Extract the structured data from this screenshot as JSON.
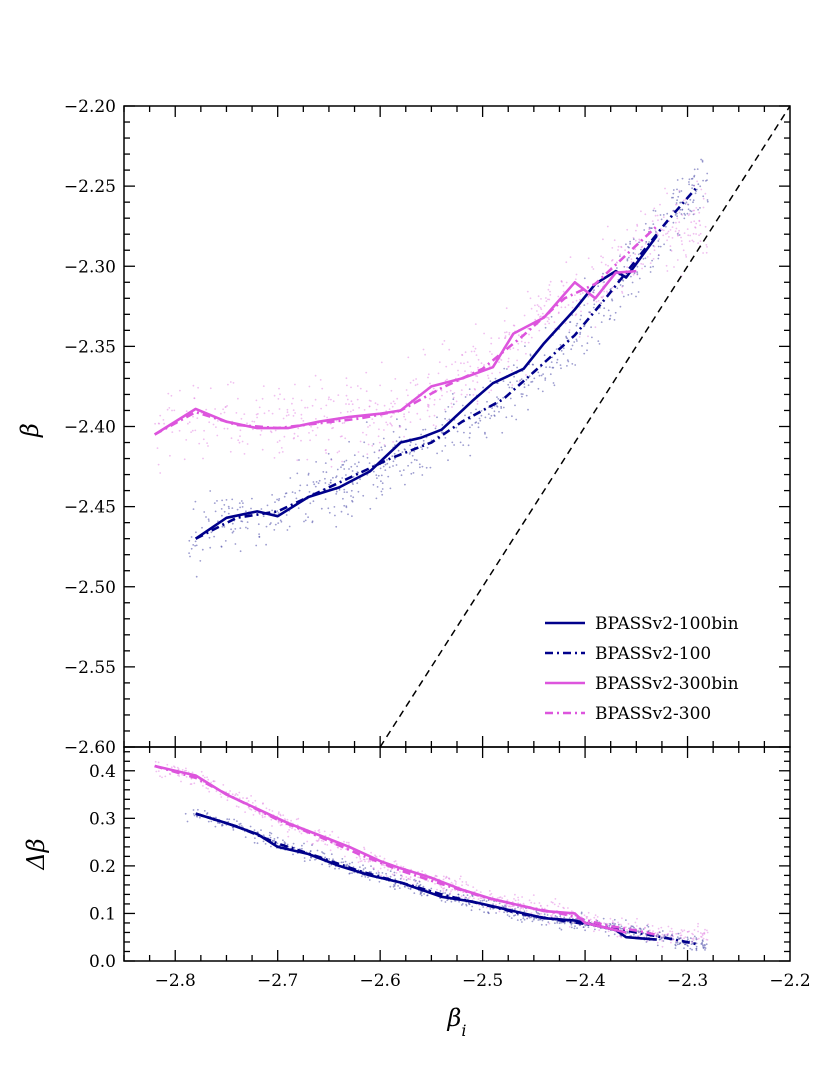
{
  "chart_data": [
    {
      "type": "line",
      "panel": "main",
      "xlabel": "",
      "ylabel": "β",
      "xlim": [
        -2.85,
        -2.2
      ],
      "ylim": [
        -2.6,
        -2.2
      ],
      "yticks": [
        -2.6,
        -2.55,
        -2.5,
        -2.45,
        -2.4,
        -2.35,
        -2.3,
        -2.25,
        -2.2
      ],
      "ytick_labels": [
        "−2.60",
        "−2.55",
        "−2.50",
        "−2.45",
        "−2.40",
        "−2.35",
        "−2.30",
        "−2.25",
        "−2.20"
      ],
      "reference_line": {
        "name": "one-to-one",
        "x": [
          -2.6,
          -2.2
        ],
        "y": [
          -2.6,
          -2.2
        ],
        "style": "dashed",
        "color": "#000000"
      },
      "series": [
        {
          "name": "BPASSv2-100bin",
          "color": "#00008b",
          "style": "solid",
          "x": [
            -2.78,
            -2.75,
            -2.72,
            -2.7,
            -2.67,
            -2.64,
            -2.61,
            -2.58,
            -2.56,
            -2.54,
            -2.51,
            -2.49,
            -2.46,
            -2.44,
            -2.41,
            -2.39,
            -2.37,
            -2.36,
            -2.33
          ],
          "y": [
            -2.47,
            -2.457,
            -2.453,
            -2.456,
            -2.444,
            -2.438,
            -2.428,
            -2.41,
            -2.407,
            -2.402,
            -2.384,
            -2.373,
            -2.364,
            -2.348,
            -2.327,
            -2.311,
            -2.303,
            -2.307,
            -2.281
          ]
        },
        {
          "name": "BPASSv2-100",
          "color": "#00008b",
          "style": "dashdot",
          "x": [
            -2.78,
            -2.74,
            -2.7,
            -2.66,
            -2.62,
            -2.59,
            -2.55,
            -2.52,
            -2.48,
            -2.45,
            -2.41,
            -2.38,
            -2.35,
            -2.32,
            -2.29
          ],
          "y": [
            -2.47,
            -2.457,
            -2.453,
            -2.441,
            -2.429,
            -2.42,
            -2.41,
            -2.397,
            -2.383,
            -2.366,
            -2.343,
            -2.32,
            -2.296,
            -2.272,
            -2.25
          ]
        },
        {
          "name": "BPASSv2-300bin",
          "color": "#dd55dd",
          "style": "solid",
          "x": [
            -2.82,
            -2.78,
            -2.75,
            -2.72,
            -2.69,
            -2.66,
            -2.63,
            -2.6,
            -2.58,
            -2.55,
            -2.52,
            -2.49,
            -2.47,
            -2.44,
            -2.41,
            -2.39,
            -2.37,
            -2.35
          ],
          "y": [
            -2.405,
            -2.389,
            -2.397,
            -2.401,
            -2.401,
            -2.397,
            -2.394,
            -2.392,
            -2.39,
            -2.375,
            -2.37,
            -2.363,
            -2.342,
            -2.332,
            -2.31,
            -2.32,
            -2.304,
            -2.303
          ]
        },
        {
          "name": "BPASSv2-300",
          "color": "#dd55dd",
          "style": "dashdot",
          "x": [
            -2.82,
            -2.78,
            -2.74,
            -2.7,
            -2.66,
            -2.62,
            -2.58,
            -2.54,
            -2.5,
            -2.46,
            -2.42,
            -2.39,
            -2.36,
            -2.33
          ],
          "y": [
            -2.405,
            -2.391,
            -2.399,
            -2.401,
            -2.398,
            -2.395,
            -2.39,
            -2.376,
            -2.364,
            -2.343,
            -2.32,
            -2.311,
            -2.293,
            -2.275
          ]
        }
      ],
      "scatter_clouds": [
        {
          "name": "BPASSv2-100 points",
          "color": "#4a4aa8",
          "x_range": [
            -2.79,
            -2.28
          ],
          "y_center_series": "BPASSv2-100",
          "y_spread": 0.025
        },
        {
          "name": "BPASSv2-300 points",
          "color": "#e48ae4",
          "x_range": [
            -2.82,
            -2.28
          ],
          "y_center_series": "BPASSv2-300",
          "y_spread": 0.03
        }
      ],
      "legend": {
        "location": "lower-right",
        "entries": [
          "BPASSv2-100bin",
          "BPASSv2-100",
          "BPASSv2-300bin",
          "BPASSv2-300"
        ]
      }
    },
    {
      "type": "line",
      "panel": "residual",
      "xlabel": "β_i",
      "ylabel": "Δβ",
      "xlim": [
        -2.85,
        -2.2
      ],
      "ylim": [
        0.0,
        0.45
      ],
      "xticks": [
        -2.8,
        -2.7,
        -2.6,
        -2.5,
        -2.4,
        -2.3,
        -2.2
      ],
      "xtick_labels": [
        "−2.8",
        "−2.7",
        "−2.6",
        "−2.5",
        "−2.4",
        "−2.3",
        "−2.2"
      ],
      "yticks": [
        0.0,
        0.1,
        0.2,
        0.3,
        0.4
      ],
      "ytick_labels": [
        "0.0",
        "0.1",
        "0.2",
        "0.3",
        "0.4"
      ],
      "series": [
        {
          "name": "BPASSv2-100bin",
          "color": "#00008b",
          "style": "solid",
          "x": [
            -2.78,
            -2.75,
            -2.72,
            -2.7,
            -2.67,
            -2.64,
            -2.61,
            -2.58,
            -2.56,
            -2.54,
            -2.51,
            -2.49,
            -2.46,
            -2.44,
            -2.41,
            -2.39,
            -2.37,
            -2.36,
            -2.33
          ],
          "y": [
            0.31,
            0.29,
            0.267,
            0.24,
            0.225,
            0.2,
            0.18,
            0.165,
            0.15,
            0.135,
            0.125,
            0.115,
            0.1,
            0.09,
            0.085,
            0.075,
            0.065,
            0.05,
            0.045
          ]
        },
        {
          "name": "BPASSv2-100",
          "color": "#00008b",
          "style": "dashdot",
          "x": [
            -2.78,
            -2.74,
            -2.7,
            -2.66,
            -2.62,
            -2.58,
            -2.54,
            -2.5,
            -2.46,
            -2.42,
            -2.38,
            -2.34,
            -2.31,
            -2.29
          ],
          "y": [
            0.31,
            0.283,
            0.247,
            0.219,
            0.189,
            0.165,
            0.14,
            0.119,
            0.098,
            0.084,
            0.072,
            0.056,
            0.044,
            0.035
          ]
        },
        {
          "name": "BPASSv2-300bin",
          "color": "#dd55dd",
          "style": "solid",
          "x": [
            -2.82,
            -2.78,
            -2.75,
            -2.72,
            -2.69,
            -2.66,
            -2.63,
            -2.6,
            -2.58,
            -2.55,
            -2.52,
            -2.49,
            -2.47,
            -2.44,
            -2.41,
            -2.4,
            -2.38,
            -2.36
          ],
          "y": [
            0.41,
            0.39,
            0.35,
            0.32,
            0.29,
            0.265,
            0.24,
            0.21,
            0.195,
            0.175,
            0.15,
            0.13,
            0.12,
            0.105,
            0.1,
            0.08,
            0.07,
            0.06
          ]
        },
        {
          "name": "BPASSv2-300",
          "color": "#dd55dd",
          "style": "dashdot",
          "x": [
            -2.82,
            -2.78,
            -2.74,
            -2.7,
            -2.66,
            -2.62,
            -2.58,
            -2.54,
            -2.5,
            -2.46,
            -2.42,
            -2.38,
            -2.35,
            -2.33
          ],
          "y": [
            0.41,
            0.385,
            0.34,
            0.297,
            0.262,
            0.224,
            0.19,
            0.162,
            0.135,
            0.115,
            0.098,
            0.075,
            0.064,
            0.055
          ]
        }
      ],
      "scatter_clouds": [
        {
          "name": "BPASSv2-100 points",
          "color": "#4a4aa8",
          "x_range": [
            -2.79,
            -2.28
          ],
          "y_center_series": "BPASSv2-100",
          "y_spread": 0.02
        },
        {
          "name": "BPASSv2-300 points",
          "color": "#e48ae4",
          "x_range": [
            -2.82,
            -2.28
          ],
          "y_center_series": "BPASSv2-300",
          "y_spread": 0.025
        }
      ]
    }
  ]
}
